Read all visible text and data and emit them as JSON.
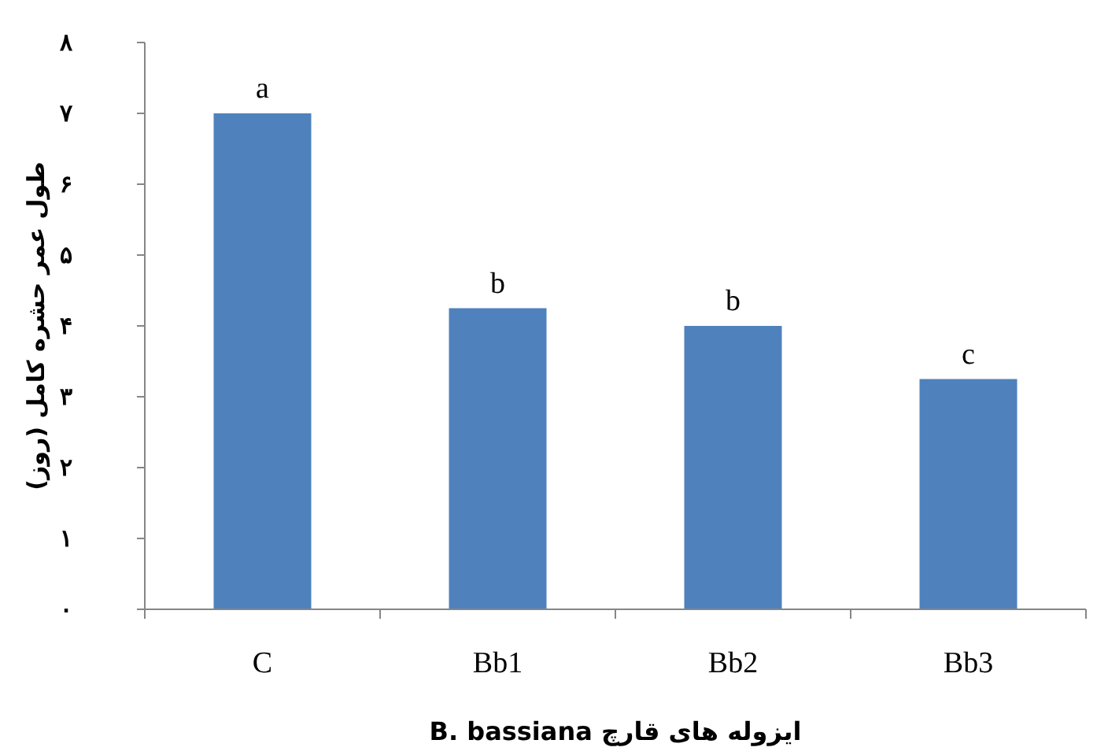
{
  "chart_data": {
    "type": "bar",
    "categories": [
      "C",
      "Bb1",
      "Bb2",
      "Bb3"
    ],
    "values": [
      7,
      4.25,
      4,
      3.25
    ],
    "color": "#4f81bd",
    "ylim": [
      0,
      8
    ],
    "yticks": [
      {
        "value": 0,
        "label": "۰"
      },
      {
        "value": 1,
        "label": "۱"
      },
      {
        "value": 2,
        "label": "۲"
      },
      {
        "value": 3,
        "label": "۳"
      },
      {
        "value": 4,
        "label": "۴"
      },
      {
        "value": 5,
        "label": "۵"
      },
      {
        "value": 6,
        "label": "۶"
      },
      {
        "value": 7,
        "label": "۷"
      },
      {
        "value": 8,
        "label": "۸"
      }
    ],
    "ylabel": "طول عمر حشره کامل (روز)",
    "xlabel": "ایزوله های قارچ B. bassiana",
    "annotations": [
      {
        "text": "a",
        "x": "C",
        "y": 7
      },
      {
        "text": "b",
        "x": "Bb1",
        "y": 4.25
      },
      {
        "text": "b",
        "x": "Bb2",
        "y": 4
      },
      {
        "text": "c",
        "x": "Bb3",
        "y": 3.25
      }
    ]
  }
}
